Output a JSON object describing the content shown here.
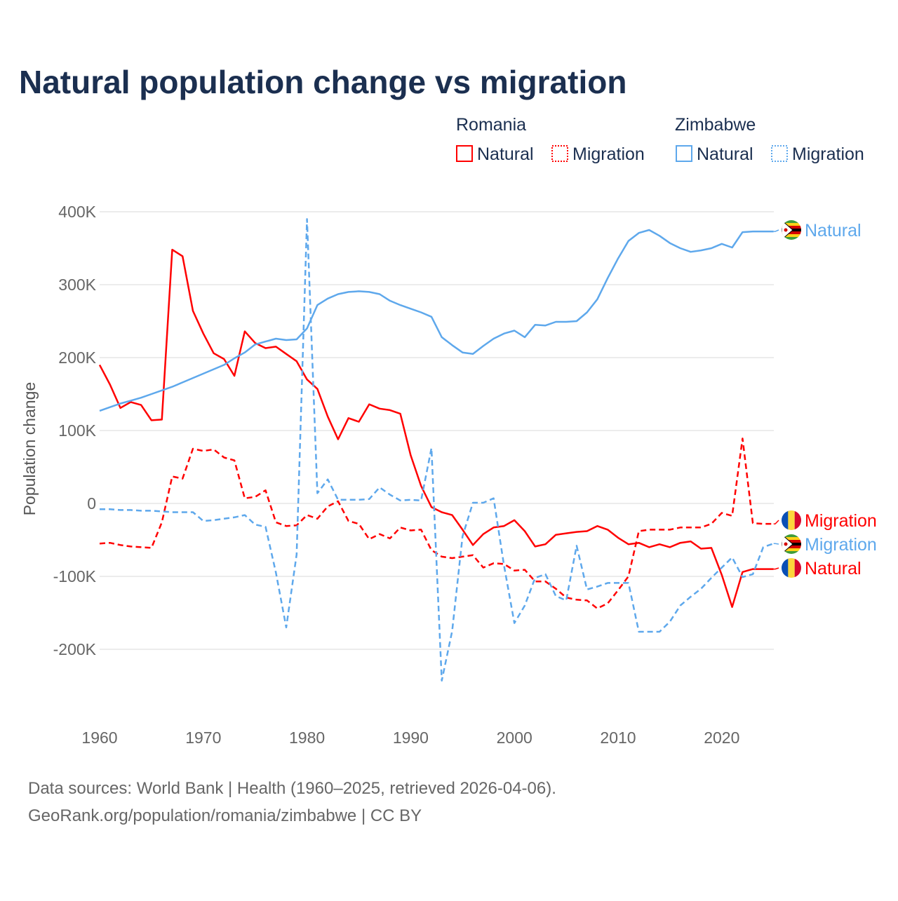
{
  "chart_data": {
    "type": "line",
    "title": "Natural population change vs migration",
    "ylabel": "Population change",
    "xlabel": "",
    "xlim": [
      1960,
      2025
    ],
    "ylim": [
      -250000,
      400000
    ],
    "x_ticks": [
      1960,
      1970,
      1980,
      1990,
      2000,
      2010,
      2020
    ],
    "y_ticks": [
      400000,
      300000,
      200000,
      100000,
      0,
      -100000,
      -200000
    ],
    "y_tick_labels": [
      "400K",
      "300K",
      "200K",
      "100K",
      "0",
      "-100K",
      "-200K"
    ],
    "grid": true,
    "legend": {
      "placement": "top-right",
      "groups": [
        {
          "country": "Romania",
          "items": [
            "Natural",
            "Migration"
          ]
        },
        {
          "country": "Zimbabwe",
          "items": [
            "Natural",
            "Migration"
          ]
        }
      ]
    },
    "colors": {
      "Romania": "#ff0000",
      "Zimbabwe": "#5ea8ec"
    },
    "series": [
      {
        "name": "Romania Natural",
        "country": "Romania",
        "kind": "Natural",
        "dashed": false,
        "start": 1960,
        "values": [
          190000,
          163000,
          131000,
          139000,
          135000,
          114000,
          115000,
          348000,
          339000,
          264000,
          233000,
          206000,
          198000,
          175000,
          236000,
          220000,
          213000,
          215000,
          205000,
          195000,
          170000,
          157000,
          119000,
          88000,
          117000,
          112000,
          136000,
          130000,
          128000,
          123000,
          66000,
          24000,
          -5000,
          -12000,
          -16000,
          -36000,
          -57000,
          -42000,
          -33000,
          -31000,
          -23000,
          -38000,
          -59000,
          -56000,
          -43000,
          -41000,
          -39000,
          -38000,
          -31000,
          -36000,
          -47000,
          -56000,
          -54000,
          -60000,
          -56000,
          -60000,
          -54000,
          -52000,
          -62000,
          -61000,
          -98000,
          -142000,
          -94000,
          -90000,
          -90000,
          -90000
        ]
      },
      {
        "name": "Romania Migration",
        "country": "Romania",
        "kind": "Migration",
        "dashed": true,
        "start": 1960,
        "values": [
          -55000,
          -54000,
          -57000,
          -59000,
          -60000,
          -61000,
          -26000,
          37000,
          34000,
          75000,
          72000,
          74000,
          63000,
          59000,
          7000,
          9000,
          18000,
          -26000,
          -31000,
          -30000,
          -16000,
          -21000,
          -4000,
          3000,
          -24000,
          -28000,
          -49000,
          -42000,
          -48000,
          -33000,
          -37000,
          -36000,
          -64000,
          -73000,
          -75000,
          -73000,
          -71000,
          -88000,
          -82000,
          -83000,
          -92000,
          -91000,
          -107000,
          -107000,
          -117000,
          -129000,
          -132000,
          -133000,
          -144000,
          -137000,
          -119000,
          -100000,
          -38000,
          -36000,
          -36000,
          -36000,
          -33000,
          -33000,
          -33000,
          -28000,
          -13000,
          -17000,
          89000,
          -27000,
          -28000,
          -28000
        ]
      },
      {
        "name": "Zimbabwe Natural",
        "country": "Zimbabwe",
        "kind": "Natural",
        "dashed": false,
        "start": 1960,
        "values": [
          127000,
          132000,
          137000,
          141000,
          145000,
          150000,
          155000,
          160000,
          166000,
          172000,
          178000,
          184000,
          190000,
          199000,
          207000,
          218000,
          222000,
          226000,
          224000,
          225000,
          240000,
          272000,
          281000,
          287000,
          290000,
          291000,
          290000,
          287000,
          278000,
          272000,
          267000,
          262000,
          256000,
          228000,
          217000,
          207000,
          205000,
          216000,
          226000,
          233000,
          237000,
          228000,
          245000,
          244000,
          249000,
          249000,
          250000,
          262000,
          280000,
          309000,
          336000,
          360000,
          371000,
          375000,
          367000,
          357000,
          350000,
          345000,
          347000,
          350000,
          356000,
          351000,
          372000,
          373000,
          373000,
          373000
        ]
      },
      {
        "name": "Zimbabwe Migration",
        "country": "Zimbabwe",
        "kind": "Migration",
        "dashed": true,
        "start": 1960,
        "values": [
          -8000,
          -8000,
          -9000,
          -9000,
          -10000,
          -10000,
          -11000,
          -12000,
          -12000,
          -12000,
          -24000,
          -23000,
          -21000,
          -19000,
          -16000,
          -29000,
          -32000,
          -95000,
          -170000,
          -70000,
          390000,
          14000,
          33000,
          5000,
          5000,
          5000,
          6000,
          22000,
          12000,
          4000,
          5000,
          4000,
          76000,
          -243000,
          -175000,
          -45000,
          1000,
          1000,
          7000,
          -85000,
          -164000,
          -140000,
          -102000,
          -97000,
          -127000,
          -133000,
          -58000,
          -118000,
          -114000,
          -109000,
          -109000,
          -109000,
          -176000,
          -176000,
          -176000,
          -162000,
          -140000,
          -128000,
          -117000,
          -102000,
          -88000,
          -74000,
          -101000,
          -97000,
          -60000,
          -55000
        ]
      }
    ],
    "end_labels": [
      {
        "series": "Zimbabwe Natural",
        "text": "Natural",
        "flag": "zimbabwe-flag"
      },
      {
        "series": "Romania Migration",
        "text": "Migration",
        "flag": "romania-flag"
      },
      {
        "series": "Zimbabwe Migration",
        "text": "Migration",
        "flag": "zimbabwe-flag"
      },
      {
        "series": "Romania Natural",
        "text": "Natural",
        "flag": "romania-flag"
      }
    ]
  },
  "footer": {
    "line1": "Data sources: World Bank | Health (1960–2025, retrieved 2026-04-06).",
    "line2": "GeoRank.org/population/romania/zimbabwe | CC BY"
  }
}
